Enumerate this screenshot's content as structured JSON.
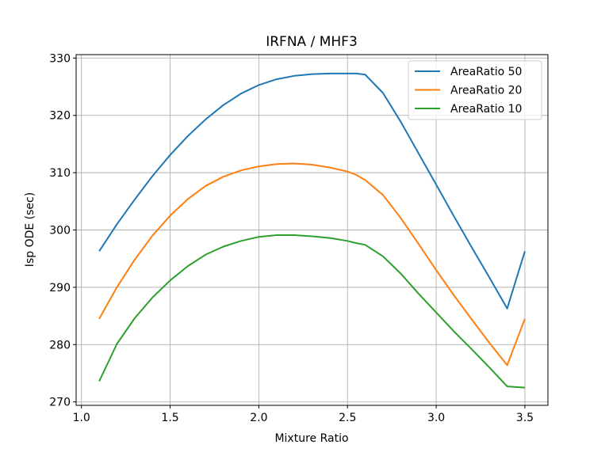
{
  "chart_data": {
    "type": "line",
    "title": "IRFNA / MHF3",
    "xlabel": "Mixture Ratio",
    "ylabel": "Isp ODE (sec)",
    "xlim": [
      0.97,
      3.63
    ],
    "ylim": [
      269.4,
      330.6
    ],
    "xticks": [
      1.0,
      1.5,
      2.0,
      2.5,
      3.0,
      3.5
    ],
    "xtick_labels": [
      "1.0",
      "1.5",
      "2.0",
      "2.5",
      "3.0",
      "3.5"
    ],
    "yticks": [
      270,
      280,
      290,
      300,
      310,
      320,
      330
    ],
    "ytick_labels": [
      "270",
      "280",
      "290",
      "300",
      "310",
      "320",
      "330"
    ],
    "grid": true,
    "legend_position": "top-right",
    "x": [
      1.1,
      1.2,
      1.3,
      1.4,
      1.5,
      1.6,
      1.7,
      1.8,
      1.9,
      2.0,
      2.1,
      2.2,
      2.3,
      2.4,
      2.5,
      2.55,
      2.6,
      2.7,
      2.8,
      2.9,
      3.0,
      3.1,
      3.2,
      3.3,
      3.4,
      3.5
    ],
    "series": [
      {
        "name": "AreaRatio 50",
        "color": "#1f77b4",
        "values": [
          296.3,
          301.0,
          305.3,
          309.4,
          313.1,
          316.4,
          319.3,
          321.8,
          323.8,
          325.3,
          326.3,
          326.9,
          327.2,
          327.3,
          327.3,
          327.3,
          327.1,
          323.9,
          318.9,
          313.4,
          307.9,
          302.4,
          297.0,
          291.7,
          286.3,
          296.3
        ]
      },
      {
        "name": "AreaRatio 20",
        "color": "#ff7f0e",
        "values": [
          284.5,
          290.0,
          294.8,
          299.0,
          302.5,
          305.4,
          307.7,
          309.3,
          310.4,
          311.1,
          311.5,
          311.6,
          311.4,
          310.9,
          310.2,
          309.6,
          308.7,
          306.1,
          302.1,
          297.6,
          293.0,
          288.6,
          284.4,
          280.3,
          276.4,
          284.5
        ]
      },
      {
        "name": "AreaRatio 10",
        "color": "#2ca02c",
        "values": [
          273.6,
          280.1,
          284.6,
          288.2,
          291.2,
          293.7,
          295.7,
          297.1,
          298.1,
          298.8,
          299.1,
          299.1,
          298.9,
          298.6,
          298.1,
          297.7,
          297.4,
          295.4,
          292.4,
          288.9,
          285.6,
          282.3,
          279.2,
          276.0,
          272.7,
          272.5
        ]
      }
    ]
  }
}
